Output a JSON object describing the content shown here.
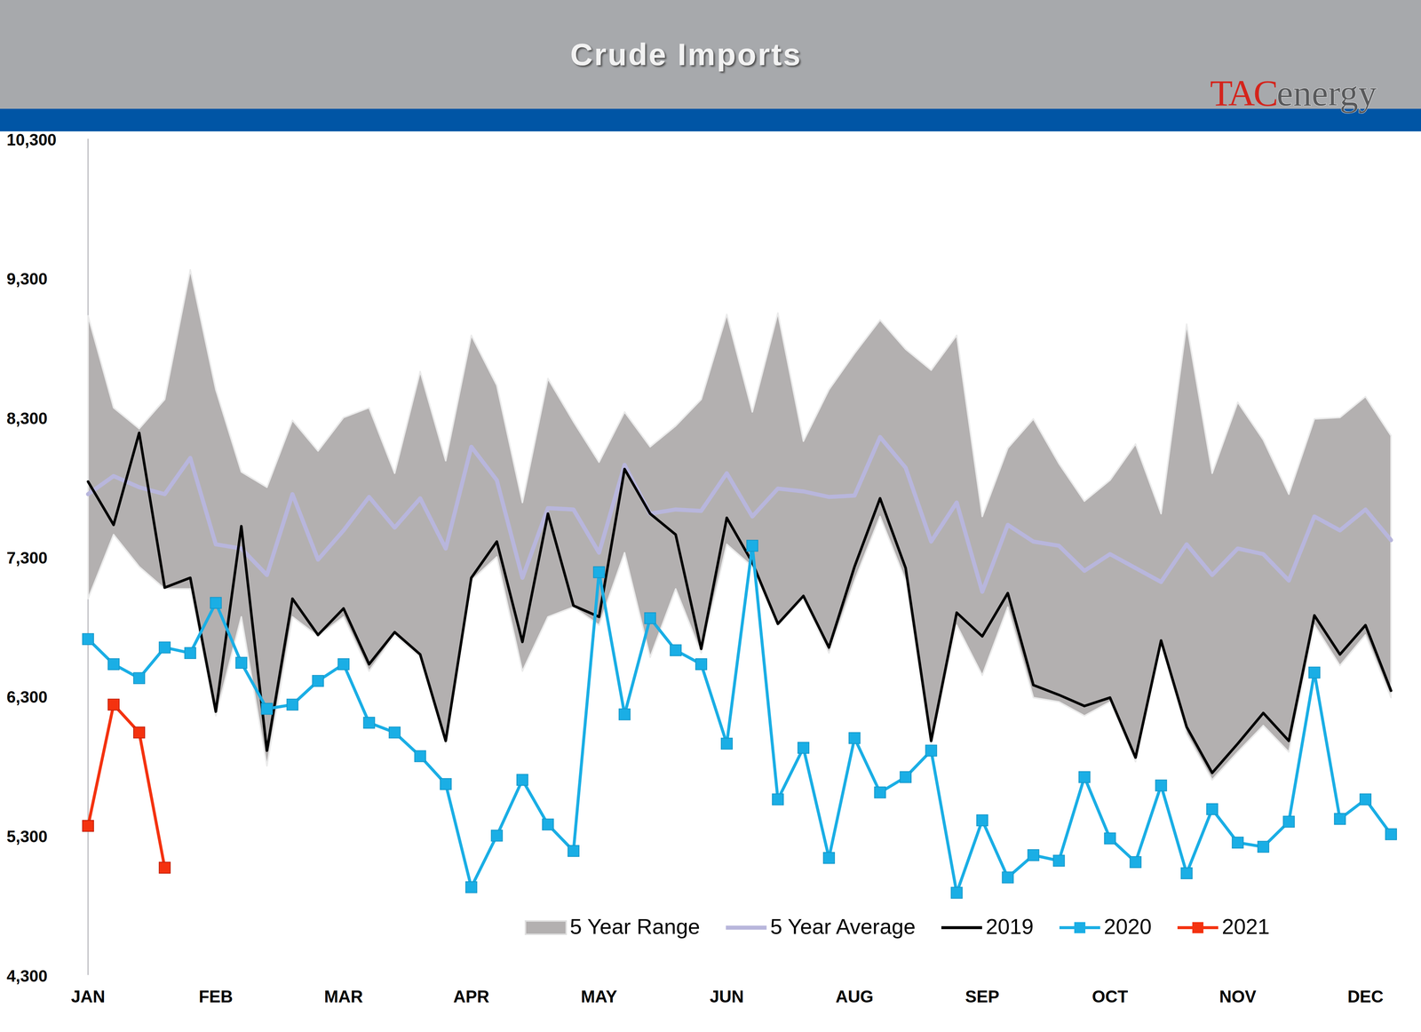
{
  "chart_data": {
    "type": "line",
    "title": "Crude Imports",
    "annotations": [
      "TAC",
      "energy"
    ],
    "categories": [
      "JAN",
      null,
      null,
      null,
      null,
      "FEB",
      null,
      null,
      null,
      null,
      "MAR",
      null,
      null,
      null,
      null,
      "APR",
      null,
      null,
      null,
      null,
      "MAY",
      null,
      null,
      null,
      null,
      "JUN",
      null,
      null,
      null,
      null,
      "AUG",
      null,
      null,
      null,
      null,
      "SEP",
      null,
      null,
      null,
      null,
      "OCT",
      null,
      null,
      null,
      null,
      "NOV",
      null,
      null,
      null,
      null,
      "DEC",
      null
    ],
    "ylim": [
      4300,
      10300
    ],
    "yticks": [
      {
        "value": 4300,
        "label": "4,300"
      },
      {
        "value": 5300,
        "label": "5,300"
      },
      {
        "value": 6300,
        "label": "6,300"
      },
      {
        "value": 7300,
        "label": "7,300"
      },
      {
        "value": 8300,
        "label": "8,300"
      },
      {
        "value": 9300,
        "label": "9,300"
      },
      {
        "value": 10300,
        "label": "10,300"
      }
    ],
    "grid": false,
    "legend": "bottom",
    "series": [
      {
        "name": "5 Year Range",
        "type": "area",
        "color": "#b3b0b0",
        "values": [
          9030,
          8370,
          8220,
          8430,
          9360,
          8500,
          7910,
          7800,
          8280,
          8060,
          8300,
          8370,
          7900,
          8630,
          7990,
          8890,
          8530,
          7690,
          8580,
          8270,
          7980,
          8340,
          8090,
          8240,
          8430,
          9040,
          8340,
          9050,
          8130,
          8500,
          8760,
          9000,
          8790,
          8640,
          8890,
          7590,
          8080,
          8290,
          7970,
          7700,
          7850,
          8110,
          7610,
          8970,
          7900,
          8410,
          8140,
          7750,
          8290,
          8300,
          8450,
          8170
        ],
        "low": [
          7000,
          7460,
          7230,
          7070,
          7070,
          6160,
          6870,
          5800,
          6870,
          6730,
          6870,
          6480,
          6740,
          6580,
          5960,
          7130,
          7300,
          6480,
          6870,
          6940,
          6810,
          7330,
          6580,
          7070,
          6610,
          7390,
          7230,
          6810,
          7000,
          6610,
          7130,
          7590,
          7130,
          5960,
          6810,
          6450,
          6940,
          6290,
          6260,
          6160,
          6260,
          5830,
          6680,
          6030,
          5700,
          5900,
          6090,
          5900,
          6810,
          6520,
          6740,
          6290
        ]
      },
      {
        "name": "5 Year Average",
        "type": "line",
        "color": "#b8b6dc",
        "values": [
          7750,
          7880,
          7800,
          7750,
          8010,
          7390,
          7360,
          7170,
          7750,
          7280,
          7490,
          7730,
          7510,
          7720,
          7360,
          8090,
          7850,
          7150,
          7650,
          7640,
          7330,
          7960,
          7610,
          7640,
          7630,
          7900,
          7590,
          7790,
          7770,
          7730,
          7740,
          8160,
          7940,
          7410,
          7690,
          7050,
          7530,
          7410,
          7380,
          7200,
          7320,
          7220,
          7120,
          7390,
          7170,
          7360,
          7320,
          7130,
          7590,
          7490,
          7640,
          7420
        ]
      },
      {
        "name": "2019",
        "type": "line",
        "color": "#000000",
        "values": [
          7840,
          7530,
          8190,
          7080,
          7150,
          6190,
          7520,
          5910,
          7000,
          6740,
          6930,
          6530,
          6760,
          6600,
          5980,
          7150,
          7410,
          6690,
          7610,
          6950,
          6870,
          7930,
          7610,
          7460,
          6640,
          7580,
          7260,
          6820,
          7020,
          6650,
          7230,
          7720,
          7220,
          5980,
          6900,
          6730,
          7040,
          6380,
          6310,
          6230,
          6290,
          5860,
          6700,
          6080,
          5750,
          5960,
          6180,
          5980,
          6880,
          6600,
          6810,
          6340
        ]
      },
      {
        "name": "2020",
        "type": "line",
        "color": "#1aaee5",
        "marker": "square",
        "values": [
          6710,
          6530,
          6430,
          6650,
          6610,
          6970,
          6540,
          6210,
          6240,
          6410,
          6530,
          6110,
          6040,
          5870,
          5670,
          4930,
          5300,
          5700,
          5380,
          5190,
          7190,
          6170,
          6860,
          6630,
          6530,
          5960,
          7380,
          5560,
          5930,
          5140,
          6000,
          5610,
          5720,
          5910,
          4890,
          5410,
          5000,
          5160,
          5120,
          5720,
          5280,
          5110,
          5660,
          5030,
          5490,
          5250,
          5220,
          5400,
          6470,
          5420,
          5560,
          5310
        ]
      },
      {
        "name": "2021",
        "type": "line",
        "color": "#f4320f",
        "marker": "square",
        "values": [
          5370,
          6240,
          6040,
          5070,
          null,
          null,
          null,
          null,
          null,
          null,
          null,
          null,
          null,
          null,
          null,
          null,
          null,
          null,
          null,
          null,
          null,
          null,
          null,
          null,
          null,
          null,
          null,
          null,
          null,
          null,
          null,
          null,
          null,
          null,
          null,
          null,
          null,
          null,
          null,
          null,
          null,
          null,
          null,
          null,
          null,
          null,
          null,
          null,
          null,
          null,
          null,
          null
        ]
      }
    ]
  }
}
